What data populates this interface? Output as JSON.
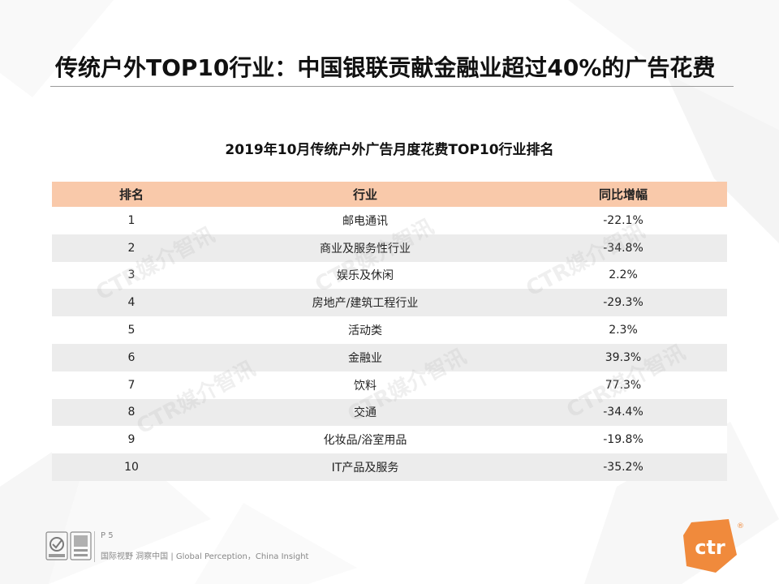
{
  "slide": {
    "title": "传统户外TOP10行业：中国银联贡献金融业超过40%的广告花费"
  },
  "table": {
    "title": "2019年10月传统户外广告月度花费TOP10行业排名",
    "headers": [
      "排名",
      "行业",
      "同比增幅"
    ],
    "rows": [
      {
        "rank": "1",
        "industry": "邮电通讯",
        "change": "-22.1%"
      },
      {
        "rank": "2",
        "industry": "商业及服务性行业",
        "change": "-34.8%"
      },
      {
        "rank": "3",
        "industry": "娱乐及休闲",
        "change": "2.2%"
      },
      {
        "rank": "4",
        "industry": "房地产/建筑工程行业",
        "change": "-29.3%"
      },
      {
        "rank": "5",
        "industry": "活动类",
        "change": "2.3%"
      },
      {
        "rank": "6",
        "industry": "金融业",
        "change": "39.3%"
      },
      {
        "rank": "7",
        "industry": "饮料",
        "change": "77.3%"
      },
      {
        "rank": "8",
        "industry": "交通",
        "change": "-34.4%"
      },
      {
        "rank": "9",
        "industry": "化妆品/浴室用品",
        "change": "-19.8%"
      },
      {
        "rank": "10",
        "industry": "IT产品及服务",
        "change": "-35.2%"
      }
    ]
  },
  "watermark": {
    "text": "CTR媒介智讯"
  },
  "footer": {
    "page_number": "P 5",
    "tagline": "国际视野 洞察中国 | Global Perception，China Insight",
    "logo_text": "ctr",
    "logo_mark": "®"
  },
  "colors": {
    "header_fill": "#f9c9aa",
    "stripe_fill": "#ececec",
    "brand_orange": "#f08a3c"
  }
}
